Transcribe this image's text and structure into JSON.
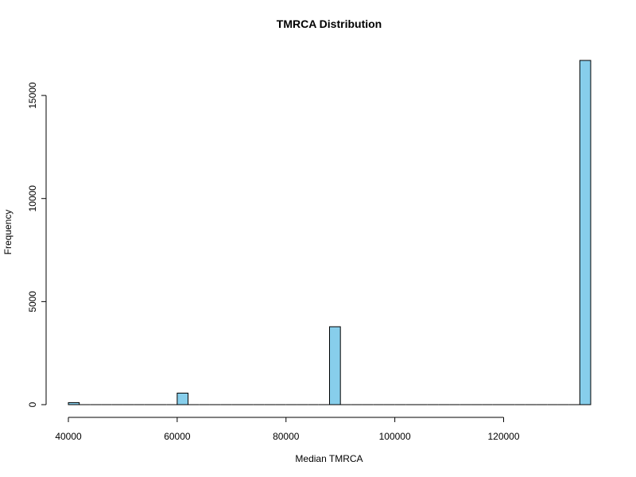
{
  "chart_data": {
    "type": "bar",
    "title": "TMRCA Distribution",
    "xlabel": "Median TMRCA",
    "ylabel": "Frequency",
    "xlim": [
      40000,
      136000
    ],
    "ylim": [
      0,
      16700
    ],
    "x_ticks": [
      40000,
      60000,
      80000,
      100000,
      120000
    ],
    "y_ticks": [
      0,
      5000,
      10000,
      15000
    ],
    "x_tick_labels": [
      "40000",
      "60000",
      "80000",
      "100000",
      "120000"
    ],
    "y_tick_labels": [
      "0",
      "5000",
      "10000",
      "15000"
    ],
    "bin_width": 2000,
    "bins": [
      {
        "start": 40000,
        "end": 42000,
        "value": 100
      },
      {
        "start": 60000,
        "end": 62000,
        "value": 560
      },
      {
        "start": 88000,
        "end": 90000,
        "value": 3780
      },
      {
        "start": 134000,
        "end": 136000,
        "value": 16700
      }
    ],
    "colors": {
      "bar_fill": "#87ceeb",
      "bar_stroke": "#000000"
    },
    "grid": false,
    "legend": "none"
  }
}
